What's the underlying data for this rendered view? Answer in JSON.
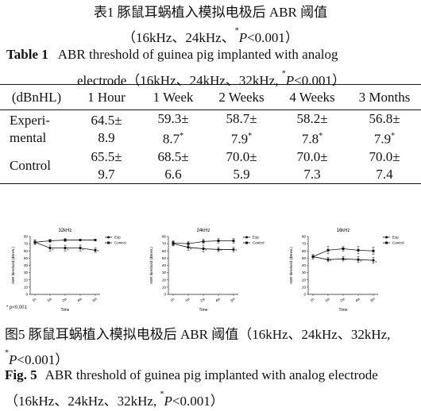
{
  "table_caption": {
    "cn_line1": "表1   豚鼠耳蜗植入模拟电极后 ABR 阈值",
    "cn_line2": "（16kHz、24kHz、*P<0.001）",
    "en_label": "Table 1",
    "en_line1": "ABR threshold of guinea pig implanted with analog",
    "en_line2": "electrode（16kHz、24kHz、32kHz, *P<0.001）"
  },
  "table": {
    "headers": [
      "(dBnHL)",
      "1 Hour",
      "1 Week",
      "2 Weeks",
      "4 Weeks",
      "3 Months"
    ],
    "rows": [
      {
        "label_1": "Experi-",
        "label_2": "mental",
        "cells": [
          [
            "64.5±",
            "8.9"
          ],
          [
            "59.3±",
            "8.7*"
          ],
          [
            "58.7±",
            "7.9*"
          ],
          [
            "58.2±",
            "7.8*"
          ],
          [
            "56.8±",
            "7.9*"
          ]
        ]
      },
      {
        "label_1": "Control",
        "label_2": "",
        "cells": [
          [
            "65.5±",
            "9.7"
          ],
          [
            "68.5±",
            "6.6"
          ],
          [
            "70.0±",
            "5.9"
          ],
          [
            "70.0±",
            "7.3"
          ],
          [
            "70.0±",
            "7.4"
          ]
        ]
      }
    ]
  },
  "p_note": "* p<0.001",
  "chart_data": [
    {
      "type": "line",
      "title": "32kHz",
      "xlabel": "Time",
      "ylabel": "ABR threshold (dBnHL)",
      "categories": [
        "1h",
        "1w",
        "2w",
        "4w",
        "3m"
      ],
      "ylim": [
        0,
        80
      ],
      "yticks": [
        0,
        10,
        20,
        30,
        40,
        50,
        60,
        70,
        80
      ],
      "legend": [
        "Exp",
        "Control"
      ],
      "legend_placement": "right",
      "series": [
        {
          "name": "Exp",
          "values": [
            72,
            64,
            64,
            64,
            61
          ],
          "err": [
            3,
            4,
            4,
            4,
            3
          ],
          "sig": [
            "",
            "*",
            "*",
            "*",
            "*"
          ]
        },
        {
          "name": "Control",
          "values": [
            72,
            74,
            75,
            75,
            75
          ],
          "err": [
            3,
            2,
            2,
            1,
            1
          ],
          "sig": [
            "",
            "",
            "",
            "",
            ""
          ]
        }
      ]
    },
    {
      "type": "line",
      "title": "24kHz",
      "xlabel": "Time",
      "ylabel": "ABR threshold (dBnHL)",
      "categories": [
        "1h",
        "1w",
        "2w",
        "4w",
        "3m"
      ],
      "ylim": [
        0,
        80
      ],
      "yticks": [
        0,
        10,
        20,
        30,
        40,
        50,
        60,
        70,
        80
      ],
      "legend": [
        "Exp",
        "Control"
      ],
      "legend_placement": "right",
      "series": [
        {
          "name": "Exp",
          "values": [
            70,
            65,
            63,
            62,
            62
          ],
          "err": [
            3,
            4,
            4,
            3,
            3
          ],
          "sig": [
            "",
            "*",
            "*",
            "*",
            "*"
          ]
        },
        {
          "name": "Control",
          "values": [
            71,
            70,
            73,
            74,
            74
          ],
          "err": [
            3,
            3,
            3,
            3,
            3
          ],
          "sig": [
            "",
            "",
            "",
            "",
            ""
          ]
        }
      ]
    },
    {
      "type": "line",
      "title": "16kHz",
      "xlabel": "Time",
      "ylabel": "ABR threshold (dBnHL)",
      "categories": [
        "1h",
        "1w",
        "2w",
        "4w",
        "3m"
      ],
      "ylim": [
        0,
        80
      ],
      "yticks": [
        0,
        10,
        20,
        30,
        40,
        50,
        60,
        70,
        80
      ],
      "legend": [
        "Exp",
        "Control"
      ],
      "legend_placement": "right",
      "series": [
        {
          "name": "Exp",
          "values": [
            52,
            48,
            49,
            48,
            47
          ],
          "err": [
            3,
            3,
            3,
            4,
            4
          ],
          "sig": [
            "",
            "*",
            "*",
            "*",
            "*"
          ]
        },
        {
          "name": "Control",
          "values": [
            52,
            61,
            63,
            61,
            60
          ],
          "err": [
            3,
            5,
            3,
            5,
            5
          ],
          "sig": [
            "",
            "",
            "",
            "",
            ""
          ]
        }
      ]
    }
  ],
  "figure_caption": {
    "cn_text": "图5   豚鼠耳蜗植入模拟电极后 ABR 阈值（16kHz、24kHz、32kHz, *P<0.001）",
    "en_label": "Fig. 5",
    "en_text": "ABR threshold of guinea pig implanted with analog electrode（16kHz、24kHz、32kHz, *P<0.001）"
  }
}
